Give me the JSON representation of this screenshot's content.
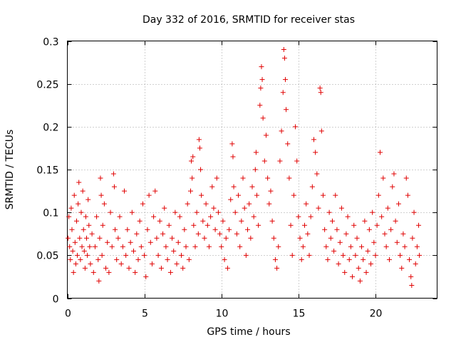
{
  "chart_data": {
    "type": "scatter",
    "title": "Day 332 of 2016, SRMTID for receiver stas",
    "xlabel": "GPS time / hours",
    "ylabel": "SRMTID / TECUs",
    "xlim": [
      0,
      24
    ],
    "ylim": [
      0,
      0.3
    ],
    "x_ticks": [
      0,
      5,
      10,
      15,
      20
    ],
    "x_tick_labels": [
      "0",
      "5",
      "10",
      "15",
      "20"
    ],
    "y_ticks": [
      0,
      0.05,
      0.1,
      0.15,
      0.2,
      0.25,
      0.3
    ],
    "y_tick_labels": [
      "0",
      "0.05",
      "0.1",
      "0.15",
      "0.2",
      "0.25",
      "0.3"
    ],
    "grid": true,
    "marker": "plus",
    "color": "#e00000",
    "series": [
      {
        "name": "SRMTID",
        "points": [
          [
            0.05,
            0.07
          ],
          [
            0.1,
            0.095
          ],
          [
            0.15,
            0.06
          ],
          [
            0.2,
            0.045
          ],
          [
            0.25,
            0.105
          ],
          [
            0.3,
            0.08
          ],
          [
            0.35,
            0.055
          ],
          [
            0.4,
            0.03
          ],
          [
            0.45,
            0.12
          ],
          [
            0.5,
            0.065
          ],
          [
            0.55,
            0.04
          ],
          [
            0.6,
            0.09
          ],
          [
            0.65,
            0.05
          ],
          [
            0.7,
            0.11
          ],
          [
            0.75,
            0.135
          ],
          [
            0.8,
            0.07
          ],
          [
            0.85,
            0.045
          ],
          [
            0.9,
            0.1
          ],
          [
            0.95,
            0.06
          ],
          [
            1.0,
            0.125
          ],
          [
            1.05,
            0.08
          ],
          [
            1.1,
            0.055
          ],
          [
            1.15,
            0.035
          ],
          [
            1.2,
            0.095
          ],
          [
            1.25,
            0.07
          ],
          [
            1.3,
            0.05
          ],
          [
            1.35,
            0.115
          ],
          [
            1.4,
            0.085
          ],
          [
            1.45,
            0.06
          ],
          [
            1.5,
            0.04
          ],
          [
            1.6,
            0.075
          ],
          [
            1.7,
            0.03
          ],
          [
            1.8,
            0.06
          ],
          [
            1.9,
            0.095
          ],
          [
            2.0,
            0.045
          ],
          [
            2.05,
            0.02
          ],
          [
            2.1,
            0.07
          ],
          [
            2.15,
            0.14
          ],
          [
            2.2,
            0.12
          ],
          [
            2.25,
            0.05
          ],
          [
            2.3,
            0.085
          ],
          [
            2.4,
            0.11
          ],
          [
            2.5,
            0.035
          ],
          [
            2.6,
            0.065
          ],
          [
            2.7,
            0.03
          ],
          [
            2.8,
            0.1
          ],
          [
            2.9,
            0.06
          ],
          [
            3.0,
            0.145
          ],
          [
            3.05,
            0.13
          ],
          [
            3.1,
            0.08
          ],
          [
            3.2,
            0.045
          ],
          [
            3.3,
            0.07
          ],
          [
            3.4,
            0.095
          ],
          [
            3.5,
            0.04
          ],
          [
            3.6,
            0.06
          ],
          [
            3.7,
            0.125
          ],
          [
            3.8,
            0.05
          ],
          [
            3.9,
            0.08
          ],
          [
            4.0,
            0.035
          ],
          [
            4.1,
            0.065
          ],
          [
            4.2,
            0.1
          ],
          [
            4.3,
            0.055
          ],
          [
            4.4,
            0.03
          ],
          [
            4.5,
            0.075
          ],
          [
            4.6,
            0.045
          ],
          [
            4.7,
            0.09
          ],
          [
            4.8,
            0.06
          ],
          [
            4.9,
            0.11
          ],
          [
            5.0,
            0.05
          ],
          [
            5.1,
            0.025
          ],
          [
            5.2,
            0.08
          ],
          [
            5.3,
            0.12
          ],
          [
            5.4,
            0.065
          ],
          [
            5.5,
            0.04
          ],
          [
            5.6,
            0.095
          ],
          [
            5.7,
            0.125
          ],
          [
            5.8,
            0.07
          ],
          [
            5.9,
            0.05
          ],
          [
            6.0,
            0.09
          ],
          [
            6.1,
            0.035
          ],
          [
            6.2,
            0.075
          ],
          [
            6.3,
            0.105
          ],
          [
            6.4,
            0.06
          ],
          [
            6.5,
            0.045
          ],
          [
            6.6,
            0.085
          ],
          [
            6.7,
            0.03
          ],
          [
            6.8,
            0.07
          ],
          [
            6.9,
            0.055
          ],
          [
            7.0,
            0.1
          ],
          [
            7.1,
            0.04
          ],
          [
            7.2,
            0.065
          ],
          [
            7.3,
            0.095
          ],
          [
            7.4,
            0.05
          ],
          [
            7.5,
            0.035
          ],
          [
            7.6,
            0.08
          ],
          [
            7.7,
            0.06
          ],
          [
            7.8,
            0.11
          ],
          [
            7.9,
            0.045
          ],
          [
            8.0,
            0.125
          ],
          [
            8.05,
            0.16
          ],
          [
            8.1,
            0.14
          ],
          [
            8.15,
            0.165
          ],
          [
            8.2,
            0.085
          ],
          [
            8.3,
            0.06
          ],
          [
            8.4,
            0.1
          ],
          [
            8.5,
            0.075
          ],
          [
            8.55,
            0.185
          ],
          [
            8.6,
            0.175
          ],
          [
            8.65,
            0.15
          ],
          [
            8.7,
            0.12
          ],
          [
            8.8,
            0.09
          ],
          [
            8.9,
            0.07
          ],
          [
            9.0,
            0.11
          ],
          [
            9.1,
            0.085
          ],
          [
            9.2,
            0.06
          ],
          [
            9.3,
            0.095
          ],
          [
            9.4,
            0.13
          ],
          [
            9.5,
            0.105
          ],
          [
            9.6,
            0.08
          ],
          [
            9.7,
            0.14
          ],
          [
            9.8,
            0.1
          ],
          [
            9.9,
            0.075
          ],
          [
            10.0,
            0.06
          ],
          [
            10.1,
            0.09
          ],
          [
            10.2,
            0.045
          ],
          [
            10.3,
            0.07
          ],
          [
            10.4,
            0.035
          ],
          [
            10.5,
            0.08
          ],
          [
            10.6,
            0.115
          ],
          [
            10.7,
            0.18
          ],
          [
            10.75,
            0.165
          ],
          [
            10.8,
            0.13
          ],
          [
            10.9,
            0.1
          ],
          [
            11.0,
            0.075
          ],
          [
            11.1,
            0.12
          ],
          [
            11.2,
            0.06
          ],
          [
            11.3,
            0.09
          ],
          [
            11.4,
            0.14
          ],
          [
            11.5,
            0.105
          ],
          [
            11.6,
            0.05
          ],
          [
            11.7,
            0.08
          ],
          [
            11.8,
            0.11
          ],
          [
            11.9,
            0.07
          ],
          [
            12.0,
            0.13
          ],
          [
            12.1,
            0.095
          ],
          [
            12.2,
            0.15
          ],
          [
            12.25,
            0.17
          ],
          [
            12.3,
            0.12
          ],
          [
            12.4,
            0.085
          ],
          [
            12.5,
            0.225
          ],
          [
            12.55,
            0.245
          ],
          [
            12.6,
            0.27
          ],
          [
            12.65,
            0.255
          ],
          [
            12.7,
            0.21
          ],
          [
            12.8,
            0.16
          ],
          [
            12.9,
            0.19
          ],
          [
            13.0,
            0.14
          ],
          [
            13.1,
            0.11
          ],
          [
            13.2,
            0.125
          ],
          [
            13.3,
            0.09
          ],
          [
            13.4,
            0.07
          ],
          [
            13.5,
            0.045
          ],
          [
            13.6,
            0.035
          ],
          [
            13.7,
            0.06
          ],
          [
            13.8,
            0.16
          ],
          [
            13.9,
            0.195
          ],
          [
            14.0,
            0.24
          ],
          [
            14.05,
            0.29
          ],
          [
            14.1,
            0.28
          ],
          [
            14.15,
            0.255
          ],
          [
            14.2,
            0.22
          ],
          [
            14.3,
            0.18
          ],
          [
            14.4,
            0.14
          ],
          [
            14.5,
            0.085
          ],
          [
            14.6,
            0.05
          ],
          [
            14.7,
            0.12
          ],
          [
            14.8,
            0.2
          ],
          [
            14.9,
            0.16
          ],
          [
            15.0,
            0.095
          ],
          [
            15.1,
            0.07
          ],
          [
            15.2,
            0.045
          ],
          [
            15.3,
            0.06
          ],
          [
            15.4,
            0.085
          ],
          [
            15.5,
            0.11
          ],
          [
            15.6,
            0.075
          ],
          [
            15.7,
            0.05
          ],
          [
            15.8,
            0.095
          ],
          [
            15.9,
            0.13
          ],
          [
            16.0,
            0.185
          ],
          [
            16.1,
            0.17
          ],
          [
            16.2,
            0.145
          ],
          [
            16.3,
            0.105
          ],
          [
            16.4,
            0.245
          ],
          [
            16.45,
            0.24
          ],
          [
            16.5,
            0.195
          ],
          [
            16.6,
            0.12
          ],
          [
            16.7,
            0.08
          ],
          [
            16.8,
            0.06
          ],
          [
            16.9,
            0.045
          ],
          [
            17.0,
            0.1
          ],
          [
            17.1,
            0.07
          ],
          [
            17.2,
            0.09
          ],
          [
            17.3,
            0.055
          ],
          [
            17.4,
            0.12
          ],
          [
            17.5,
            0.08
          ],
          [
            17.6,
            0.04
          ],
          [
            17.7,
            0.065
          ],
          [
            17.8,
            0.105
          ],
          [
            17.9,
            0.05
          ],
          [
            18.0,
            0.03
          ],
          [
            18.1,
            0.075
          ],
          [
            18.2,
            0.095
          ],
          [
            18.3,
            0.045
          ],
          [
            18.4,
            0.06
          ],
          [
            18.5,
            0.025
          ],
          [
            18.6,
            0.085
          ],
          [
            18.7,
            0.05
          ],
          [
            18.8,
            0.07
          ],
          [
            18.9,
            0.035
          ],
          [
            19.0,
            0.02
          ],
          [
            19.1,
            0.06
          ],
          [
            19.2,
            0.045
          ],
          [
            19.3,
            0.09
          ],
          [
            19.4,
            0.03
          ],
          [
            19.5,
            0.055
          ],
          [
            19.6,
            0.08
          ],
          [
            19.7,
            0.04
          ],
          [
            19.8,
            0.1
          ],
          [
            19.9,
            0.065
          ],
          [
            20.0,
            0.05
          ],
          [
            20.1,
            0.085
          ],
          [
            20.2,
            0.12
          ],
          [
            20.3,
            0.17
          ],
          [
            20.4,
            0.095
          ],
          [
            20.5,
            0.14
          ],
          [
            20.6,
            0.075
          ],
          [
            20.7,
            0.06
          ],
          [
            20.8,
            0.105
          ],
          [
            20.9,
            0.045
          ],
          [
            21.0,
            0.08
          ],
          [
            21.1,
            0.13
          ],
          [
            21.2,
            0.145
          ],
          [
            21.3,
            0.09
          ],
          [
            21.4,
            0.065
          ],
          [
            21.5,
            0.11
          ],
          [
            21.6,
            0.05
          ],
          [
            21.7,
            0.035
          ],
          [
            21.8,
            0.075
          ],
          [
            21.9,
            0.06
          ],
          [
            22.0,
            0.14
          ],
          [
            22.1,
            0.12
          ],
          [
            22.2,
            0.045
          ],
          [
            22.3,
            0.025
          ],
          [
            22.35,
            0.015
          ],
          [
            22.4,
            0.07
          ],
          [
            22.5,
            0.1
          ],
          [
            22.6,
            0.04
          ],
          [
            22.7,
            0.06
          ],
          [
            22.8,
            0.085
          ],
          [
            22.85,
            0.05
          ]
        ]
      }
    ]
  }
}
